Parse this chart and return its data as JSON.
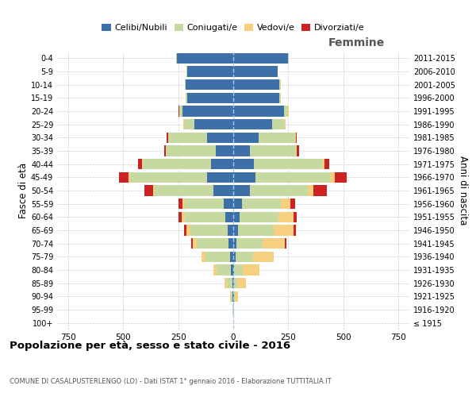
{
  "age_groups": [
    "100+",
    "95-99",
    "90-94",
    "85-89",
    "80-84",
    "75-79",
    "70-74",
    "65-69",
    "60-64",
    "55-59",
    "50-54",
    "45-49",
    "40-44",
    "35-39",
    "30-34",
    "25-29",
    "20-24",
    "15-19",
    "10-14",
    "5-9",
    "0-4"
  ],
  "birth_years": [
    "≤ 1915",
    "1916-1920",
    "1921-1925",
    "1926-1930",
    "1931-1935",
    "1936-1940",
    "1941-1945",
    "1946-1950",
    "1951-1955",
    "1956-1960",
    "1961-1965",
    "1966-1970",
    "1971-1975",
    "1976-1980",
    "1981-1985",
    "1986-1990",
    "1991-1995",
    "1996-2000",
    "2001-2005",
    "2006-2010",
    "2011-2015"
  ],
  "maschi": {
    "celibi": [
      0,
      1,
      2,
      5,
      10,
      15,
      20,
      25,
      35,
      45,
      90,
      120,
      100,
      80,
      120,
      175,
      230,
      210,
      215,
      210,
      255
    ],
    "coniugati": [
      0,
      2,
      8,
      25,
      65,
      110,
      145,
      170,
      185,
      175,
      270,
      350,
      310,
      225,
      175,
      50,
      15,
      5,
      5,
      3,
      3
    ],
    "vedovi": [
      0,
      1,
      3,
      10,
      15,
      20,
      20,
      18,
      15,
      10,
      5,
      5,
      3,
      2,
      2,
      1,
      1,
      0,
      0,
      0,
      0
    ],
    "divorziati": [
      0,
      0,
      0,
      0,
      0,
      0,
      5,
      10,
      15,
      20,
      40,
      45,
      18,
      8,
      5,
      2,
      1,
      0,
      0,
      0,
      0
    ]
  },
  "femmine": {
    "nubili": [
      0,
      1,
      2,
      3,
      5,
      10,
      15,
      20,
      30,
      40,
      75,
      100,
      95,
      75,
      115,
      175,
      230,
      210,
      210,
      200,
      250
    ],
    "coniugate": [
      0,
      2,
      5,
      15,
      40,
      80,
      120,
      165,
      175,
      175,
      265,
      340,
      310,
      210,
      165,
      60,
      20,
      5,
      5,
      3,
      3
    ],
    "vedove": [
      0,
      2,
      15,
      40,
      75,
      95,
      100,
      90,
      70,
      45,
      25,
      20,
      10,
      5,
      3,
      2,
      1,
      0,
      0,
      0,
      0
    ],
    "divorziate": [
      0,
      0,
      0,
      0,
      0,
      0,
      5,
      10,
      15,
      20,
      60,
      55,
      20,
      10,
      5,
      2,
      1,
      0,
      0,
      0,
      0
    ]
  },
  "colors": {
    "celibi": "#3d6fa8",
    "coniugati": "#c5d9a0",
    "vedovi": "#f5d080",
    "divorziati": "#cc2222"
  },
  "xlim": 800,
  "title": "Popolazione per età, sesso e stato civile - 2016",
  "subtitle": "COMUNE DI CASALPUSTERLENGO (LO) - Dati ISTAT 1° gennaio 2016 - Elaborazione TUTTITALIA.IT",
  "ylabel_left": "Fasce di età",
  "ylabel_right": "Anni di nascita",
  "legend_labels": [
    "Celibi/Nubili",
    "Coniugati/e",
    "Vedovi/e",
    "Divorziati/e"
  ]
}
